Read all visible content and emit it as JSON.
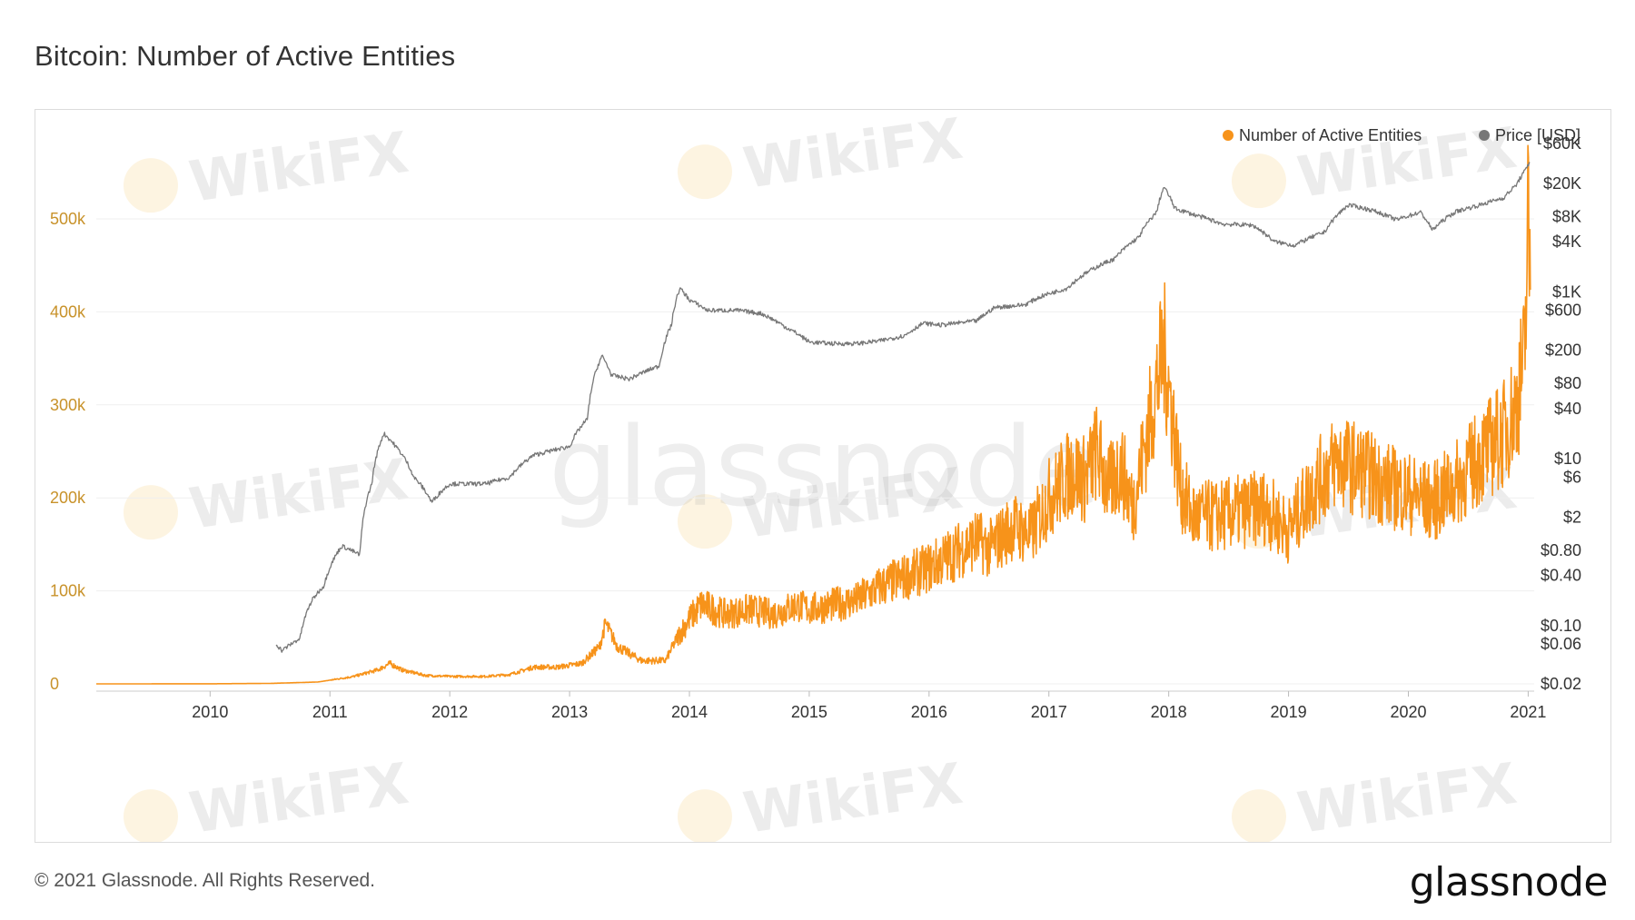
{
  "header": {
    "title": "Bitcoin: Number of Active Entities"
  },
  "footer": {
    "copyright": "© 2021 Glassnode. All Rights Reserved.",
    "logo": "glassnode"
  },
  "watermarks": {
    "brand": "WikiFX",
    "center": "glassnode"
  },
  "chart_data": {
    "type": "line",
    "title": "Bitcoin: Number of Active Entities",
    "legend_position": "top-right",
    "colors": {
      "entities": "#f7931a",
      "price": "#777777"
    },
    "x_ticks": [
      "2010",
      "2011",
      "2012",
      "2013",
      "2014",
      "2015",
      "2016",
      "2017",
      "2018",
      "2019",
      "2020",
      "2021"
    ],
    "y_left_ticks": [
      {
        "label": "0",
        "value": 0
      },
      {
        "label": "100k",
        "value": 100000
      },
      {
        "label": "200k",
        "value": 200000
      },
      {
        "label": "300k",
        "value": 300000
      },
      {
        "label": "400k",
        "value": 400000
      },
      {
        "label": "500k",
        "value": 500000
      }
    ],
    "y_right_scale": "log",
    "y_right_ticks": [
      {
        "label": "$60K",
        "value": 60000
      },
      {
        "label": "$20K",
        "value": 20000
      },
      {
        "label": "$8K",
        "value": 8000
      },
      {
        "label": "$4K",
        "value": 4000
      },
      {
        "label": "$1K",
        "value": 1000
      },
      {
        "label": "$600",
        "value": 600
      },
      {
        "label": "$200",
        "value": 200
      },
      {
        "label": "$80",
        "value": 80
      },
      {
        "label": "$40",
        "value": 40
      },
      {
        "label": "$10",
        "value": 10
      },
      {
        "label": "$6",
        "value": 6
      },
      {
        "label": "$2",
        "value": 2
      },
      {
        "label": "$0.80",
        "value": 0.8
      },
      {
        "label": "$0.40",
        "value": 0.4
      },
      {
        "label": "$0.10",
        "value": 0.1
      },
      {
        "label": "$0.06",
        "value": 0.06
      },
      {
        "label": "$0.02",
        "value": 0.02
      }
    ],
    "series": [
      {
        "name": "Number of Active Entities",
        "axis": "left",
        "points": [
          [
            2009.05,
            0
          ],
          [
            2010.0,
            100
          ],
          [
            2010.5,
            500
          ],
          [
            2010.9,
            2000
          ],
          [
            2011.2,
            8000
          ],
          [
            2011.4,
            15000
          ],
          [
            2011.5,
            22000
          ],
          [
            2011.6,
            15000
          ],
          [
            2011.8,
            9000
          ],
          [
            2012.0,
            8000
          ],
          [
            2012.3,
            8000
          ],
          [
            2012.5,
            10000
          ],
          [
            2012.7,
            18000
          ],
          [
            2012.9,
            18000
          ],
          [
            2013.1,
            22000
          ],
          [
            2013.25,
            40000
          ],
          [
            2013.3,
            65000
          ],
          [
            2013.4,
            40000
          ],
          [
            2013.6,
            25000
          ],
          [
            2013.8,
            25000
          ],
          [
            2013.9,
            50000
          ],
          [
            2014.0,
            70000
          ],
          [
            2014.1,
            85000
          ],
          [
            2014.3,
            75000
          ],
          [
            2014.5,
            80000
          ],
          [
            2014.7,
            75000
          ],
          [
            2014.9,
            85000
          ],
          [
            2015.0,
            80000
          ],
          [
            2015.2,
            85000
          ],
          [
            2015.4,
            90000
          ],
          [
            2015.6,
            105000
          ],
          [
            2015.8,
            115000
          ],
          [
            2016.0,
            125000
          ],
          [
            2016.2,
            140000
          ],
          [
            2016.4,
            155000
          ],
          [
            2016.5,
            145000
          ],
          [
            2016.7,
            170000
          ],
          [
            2016.85,
            160000
          ],
          [
            2017.0,
            200000
          ],
          [
            2017.2,
            230000
          ],
          [
            2017.3,
            220000
          ],
          [
            2017.4,
            250000
          ],
          [
            2017.5,
            210000
          ],
          [
            2017.6,
            235000
          ],
          [
            2017.7,
            190000
          ],
          [
            2017.8,
            255000
          ],
          [
            2017.9,
            320000
          ],
          [
            2017.96,
            360000
          ],
          [
            2018.02,
            300000
          ],
          [
            2018.1,
            210000
          ],
          [
            2018.2,
            180000
          ],
          [
            2018.4,
            180000
          ],
          [
            2018.6,
            185000
          ],
          [
            2018.8,
            190000
          ],
          [
            2019.0,
            165000
          ],
          [
            2019.2,
            210000
          ],
          [
            2019.4,
            240000
          ],
          [
            2019.6,
            230000
          ],
          [
            2019.8,
            215000
          ],
          [
            2020.0,
            205000
          ],
          [
            2020.2,
            195000
          ],
          [
            2020.4,
            215000
          ],
          [
            2020.6,
            245000
          ],
          [
            2020.8,
            270000
          ],
          [
            2020.9,
            300000
          ],
          [
            2020.97,
            350000
          ],
          [
            2021.0,
            500000
          ],
          [
            2021.02,
            420000
          ]
        ]
      },
      {
        "name": "Price [USD]",
        "axis": "right",
        "points": [
          [
            2010.55,
            0.06
          ],
          [
            2010.6,
            0.05
          ],
          [
            2010.75,
            0.07
          ],
          [
            2010.85,
            0.2
          ],
          [
            2010.95,
            0.3
          ],
          [
            2011.1,
            0.9
          ],
          [
            2011.25,
            0.7
          ],
          [
            2011.35,
            5
          ],
          [
            2011.45,
            20
          ],
          [
            2011.55,
            14
          ],
          [
            2011.7,
            6
          ],
          [
            2011.85,
            3
          ],
          [
            2012.0,
            5
          ],
          [
            2012.15,
            5
          ],
          [
            2012.3,
            5
          ],
          [
            2012.5,
            6
          ],
          [
            2012.7,
            11
          ],
          [
            2012.9,
            13
          ],
          [
            2013.0,
            14
          ],
          [
            2013.15,
            30
          ],
          [
            2013.27,
            170
          ],
          [
            2013.35,
            100
          ],
          [
            2013.5,
            90
          ],
          [
            2013.75,
            130
          ],
          [
            2013.85,
            400
          ],
          [
            2013.92,
            1100
          ],
          [
            2014.0,
            800
          ],
          [
            2014.15,
            600
          ],
          [
            2014.4,
            600
          ],
          [
            2014.6,
            550
          ],
          [
            2014.8,
            380
          ],
          [
            2015.0,
            250
          ],
          [
            2015.2,
            240
          ],
          [
            2015.4,
            240
          ],
          [
            2015.6,
            260
          ],
          [
            2015.8,
            300
          ],
          [
            2015.95,
            420
          ],
          [
            2016.1,
            400
          ],
          [
            2016.4,
            450
          ],
          [
            2016.55,
            650
          ],
          [
            2016.8,
            700
          ],
          [
            2016.95,
            900
          ],
          [
            2017.15,
            1100
          ],
          [
            2017.4,
            2000
          ],
          [
            2017.55,
            2500
          ],
          [
            2017.75,
            4500
          ],
          [
            2017.9,
            9000
          ],
          [
            2017.96,
            18000
          ],
          [
            2018.05,
            10000
          ],
          [
            2018.2,
            8500
          ],
          [
            2018.45,
            6500
          ],
          [
            2018.7,
            6300
          ],
          [
            2018.88,
            4000
          ],
          [
            2019.05,
            3600
          ],
          [
            2019.3,
            5200
          ],
          [
            2019.5,
            11000
          ],
          [
            2019.7,
            9500
          ],
          [
            2019.9,
            7300
          ],
          [
            2020.1,
            9000
          ],
          [
            2020.2,
            5500
          ],
          [
            2020.4,
            9200
          ],
          [
            2020.6,
            11000
          ],
          [
            2020.8,
            13500
          ],
          [
            2020.9,
            19000
          ],
          [
            2020.98,
            29000
          ],
          [
            2021.02,
            38000
          ]
        ]
      }
    ]
  }
}
